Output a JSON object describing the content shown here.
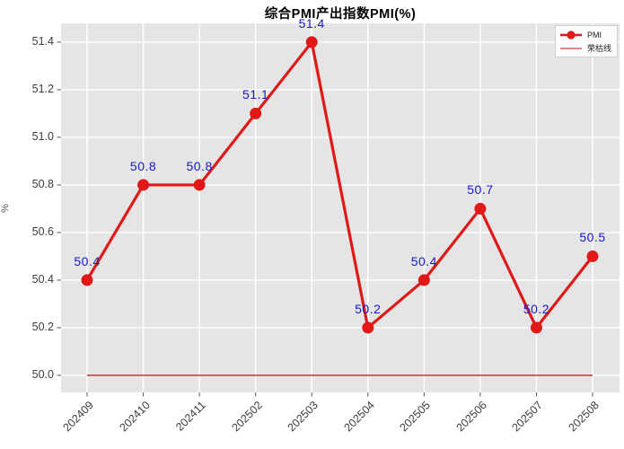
{
  "figure": {
    "title": "综合PMI产出指数PMI(%)",
    "y_axis_label": "%"
  },
  "legend": {
    "position": "top-right",
    "items": [
      {
        "label": "PMI",
        "swatch": "line-with-circle-marker",
        "color": "#e01818"
      },
      {
        "label": "荣枯线",
        "swatch": "thin-line",
        "color": "#cc4040"
      }
    ]
  },
  "chart_data": {
    "type": "line",
    "title": "综合PMI产出指数PMI(%)",
    "xlabel": "",
    "ylabel": "%",
    "categories": [
      "202409",
      "202410",
      "202411",
      "202502",
      "202503",
      "202504",
      "202505",
      "202506",
      "202507",
      "202508"
    ],
    "series": [
      {
        "name": "PMI",
        "values": [
          50.4,
          50.8,
          50.8,
          51.1,
          51.4,
          50.2,
          50.4,
          50.7,
          50.2,
          50.5
        ],
        "color": "#e01818",
        "marker": "circle",
        "show_data_labels": true,
        "data_label_color": "#1717cc"
      }
    ],
    "reference_line": {
      "name": "荣枯线",
      "value": 50.0,
      "color": "#cc4040"
    },
    "y_ticks": [
      50.0,
      50.2,
      50.4,
      50.6,
      50.8,
      51.0,
      51.2,
      51.4
    ],
    "y_tick_labels": [
      "50.0",
      "50.2",
      "50.4",
      "50.6",
      "50.8",
      "51.0",
      "51.2",
      "51.4"
    ],
    "ylim": [
      49.928,
      51.479
    ],
    "grid": true,
    "grid_color": "#ffffff",
    "plot_background": "#e5e5e5",
    "legend_position": "top-right"
  }
}
